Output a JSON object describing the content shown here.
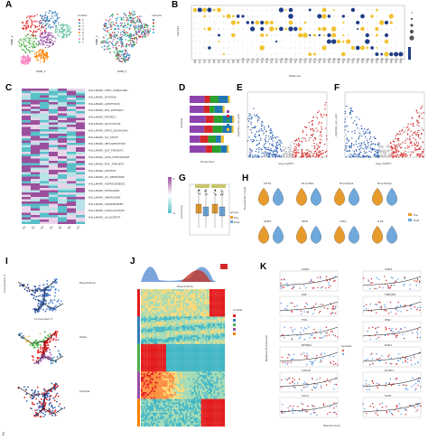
{
  "figure": {
    "panel_labels": [
      "A",
      "B",
      "C",
      "D",
      "E",
      "F",
      "G",
      "H",
      "I",
      "J",
      "K"
    ],
    "page_number": "2",
    "colors": {
      "purple": "#8e44ad",
      "teal": "#5bc0c6",
      "red": "#d62728",
      "blue": "#2b5fb4",
      "yellow": "#f1c232",
      "grey": "#bdbdbd",
      "orange": "#e89b2d",
      "lightblue": "#6fa8dc"
    }
  },
  "panelA": {
    "title_left": "Cluster",
    "title_right": "sample",
    "xlabel": "tSNE_1",
    "ylabel": "tSNE_2"
  },
  "panelB": {
    "ylabel": "Identity",
    "xlabel": "Features"
  },
  "panelC": {
    "terms": [
      "HALLMARK_TNFA_SIGNALING",
      "HALLMARK_HYPOXIA",
      "HALLMARK_APOPTOSIS",
      "HALLMARK_P53_PATHWAY",
      "HALLMARK_MTORC1",
      "HALLMARK_GLYCOLYSIS",
      "HALLMARK_KRAS_SIGNALING",
      "HALLMARK_IL2_STAT5",
      "HALLMARK_INFLAMMATORY",
      "HALLMARK_E2F_TARGETS",
      "HALLMARK_G2M_CHECKPOINT",
      "HALLMARK_MYC_TARGETS",
      "HALLMARK_OXPHOS",
      "HALLMARK_UV_RESPONSE",
      "HALLMARK_ADIPOGENESIS",
      "HALLMARK_ESTROGEN",
      "HALLMARK_ANDROGEN",
      "HALLMARK_COMPLEMENT",
      "HALLMARK_COAGULATION",
      "HALLMARK_ALLOGRAFT"
    ],
    "legend_max": "4",
    "legend_min": "-4"
  },
  "panelD": {
    "ylabel": "Sample",
    "xlabel": "Proportion"
  },
  "panelE": {
    "ylabel": "-log10(p_val_adj)",
    "xlabel": "avg_log2FC"
  },
  "panelF": {
    "ylabel": "-log10(p_val_adj)",
    "xlabel": "avg_log2FC"
  },
  "panelG": {
    "ylabel": "Cell Score",
    "legend_title": "group",
    "legend_items": [
      "Pre",
      "Post"
    ]
  },
  "panelH": {
    "genes_top": [
      "CD74",
      "HLA-DRA",
      "HLA-DQA1",
      "HLA-DQA2"
    ],
    "genes_bottom": [
      "CD83",
      "IRF8",
      "CIITA",
      "IL1B"
    ],
    "ylabel": "Expression Level",
    "legend_items": [
      "Pre",
      "Post"
    ]
  },
  "panelI": {
    "xlabel": "Component 1",
    "ylabel": "Component 2",
    "legend1_title": "Pseudotime",
    "legend2_title": "State",
    "legend3_title": "Sample"
  },
  "panelJ": {
    "xlabel": "Pseudotime",
    "legend_title": "Cluster"
  },
  "panelK": {
    "genes_left": [
      "CD69",
      "JUN",
      "FOS",
      "NFKBIA",
      "CXCL8",
      "CCL3"
    ],
    "genes_right": [
      "CD83",
      "TNFAIP3",
      "IER2",
      "EGR1",
      "DUSP1",
      "KLF6"
    ],
    "xlabel": "Pseudo-time",
    "ylabel": "Relative Expression",
    "legend_title": "Sample"
  }
}
